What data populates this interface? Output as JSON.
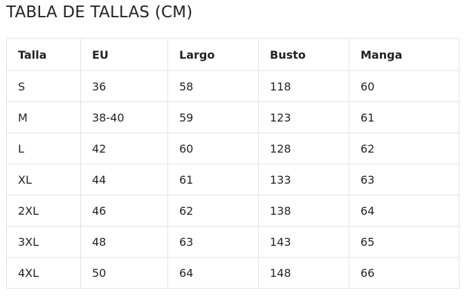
{
  "title": "TABLA DE TALLAS (CM)",
  "table": {
    "header": [
      "Talla",
      "EU",
      "Largo",
      "Busto",
      "Manga"
    ],
    "rows": [
      [
        "S",
        "36",
        "58",
        "118",
        "60"
      ],
      [
        "M",
        "38-40",
        "59",
        "123",
        "61"
      ],
      [
        "L",
        "42",
        "60",
        "128",
        "62"
      ],
      [
        "XL",
        "44",
        "61",
        "133",
        "63"
      ],
      [
        "2XL",
        "46",
        "62",
        "138",
        "64"
      ],
      [
        "3XL",
        "48",
        "63",
        "143",
        "65"
      ],
      [
        "4XL",
        "50",
        "64",
        "148",
        "66"
      ]
    ]
  }
}
